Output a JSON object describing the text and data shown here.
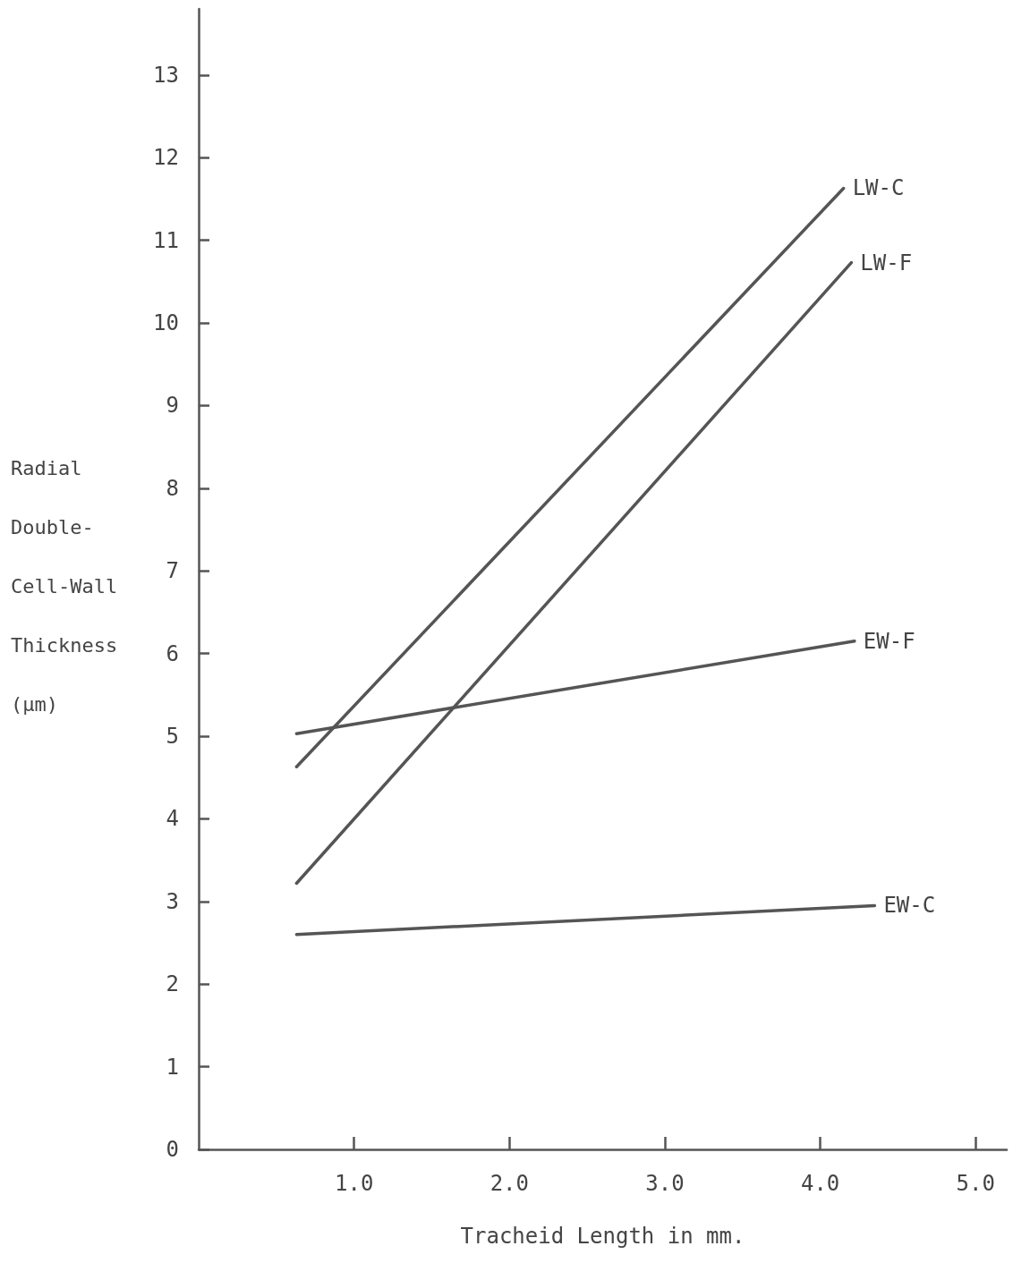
{
  "chart_data": {
    "type": "line",
    "xlabel": "Tracheid Length in mm.",
    "ylabel": "Radial Double-Cell-Wall Thickness (µm)",
    "xlim": [
      0,
      5.2
    ],
    "xticks": [
      {
        "value": 1,
        "label": "1.0"
      },
      {
        "value": 2,
        "label": "2.0"
      },
      {
        "value": 3,
        "label": "3.0"
      },
      {
        "value": 4,
        "label": "4.0"
      },
      {
        "value": 5,
        "label": "5.0"
      }
    ],
    "ylim": [
      0,
      13.8
    ],
    "yticks": [
      0,
      1,
      2,
      3,
      4,
      5,
      6,
      7,
      8,
      9,
      10,
      11,
      12,
      13
    ],
    "grid": false,
    "legend": false,
    "marker": "none",
    "line_style": "solid",
    "series": [
      {
        "name": "LW-C",
        "color": "#555555",
        "x": [
          0.63,
          4.15
        ],
        "values": [
          4.63,
          11.63
        ]
      },
      {
        "name": "LW-F",
        "color": "#555555",
        "x": [
          0.63,
          4.2
        ],
        "values": [
          3.22,
          10.73
        ]
      },
      {
        "name": "EW-F",
        "color": "#555555",
        "x": [
          0.63,
          4.22
        ],
        "values": [
          5.03,
          6.15
        ]
      },
      {
        "name": "EW-C",
        "color": "#555555",
        "x": [
          0.63,
          4.35
        ],
        "values": [
          2.6,
          2.95
        ]
      }
    ]
  }
}
